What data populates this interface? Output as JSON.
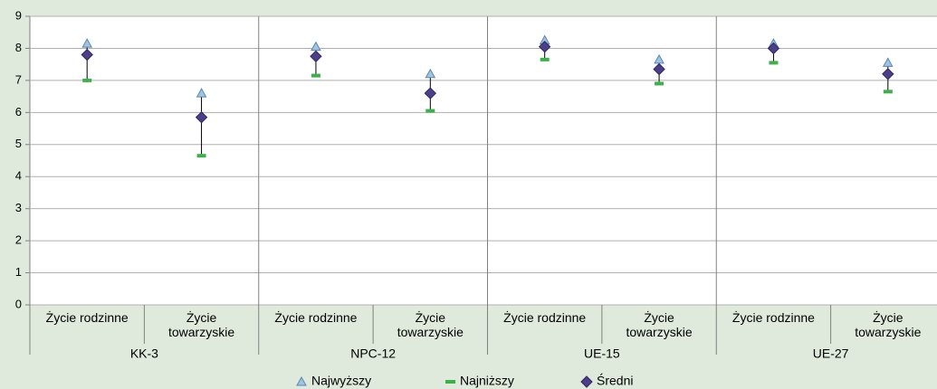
{
  "chart_data": {
    "type": "hilo",
    "groups": [
      "KK-3",
      "NPC-12",
      "UE-15",
      "UE-27"
    ],
    "categories": [
      "Życie rodzinne",
      "Życie towarzyskie",
      "Życie rodzinne",
      "Życie towarzyskie",
      "Życie rodzinne",
      "Życie towarzyskie",
      "Życie rodzinne",
      "Życie towarzyskie"
    ],
    "series": [
      {
        "name": "Najwyższy",
        "color": "#9fc4df",
        "values": [
          8.15,
          6.6,
          8.05,
          7.2,
          8.25,
          7.65,
          8.15,
          7.55
        ]
      },
      {
        "name": "Najniższy",
        "color": "#3cb04a",
        "values": [
          7.0,
          4.65,
          7.15,
          6.05,
          7.65,
          6.9,
          7.55,
          6.65
        ]
      },
      {
        "name": "Średni",
        "color": "#4b3f8c",
        "values": [
          7.8,
          5.85,
          7.75,
          6.6,
          8.05,
          7.35,
          8.0,
          7.2
        ]
      }
    ],
    "ylim": [
      0,
      9
    ],
    "yticks": [
      0,
      1,
      2,
      3,
      4,
      5,
      6,
      7,
      8,
      9
    ],
    "grid": true
  }
}
